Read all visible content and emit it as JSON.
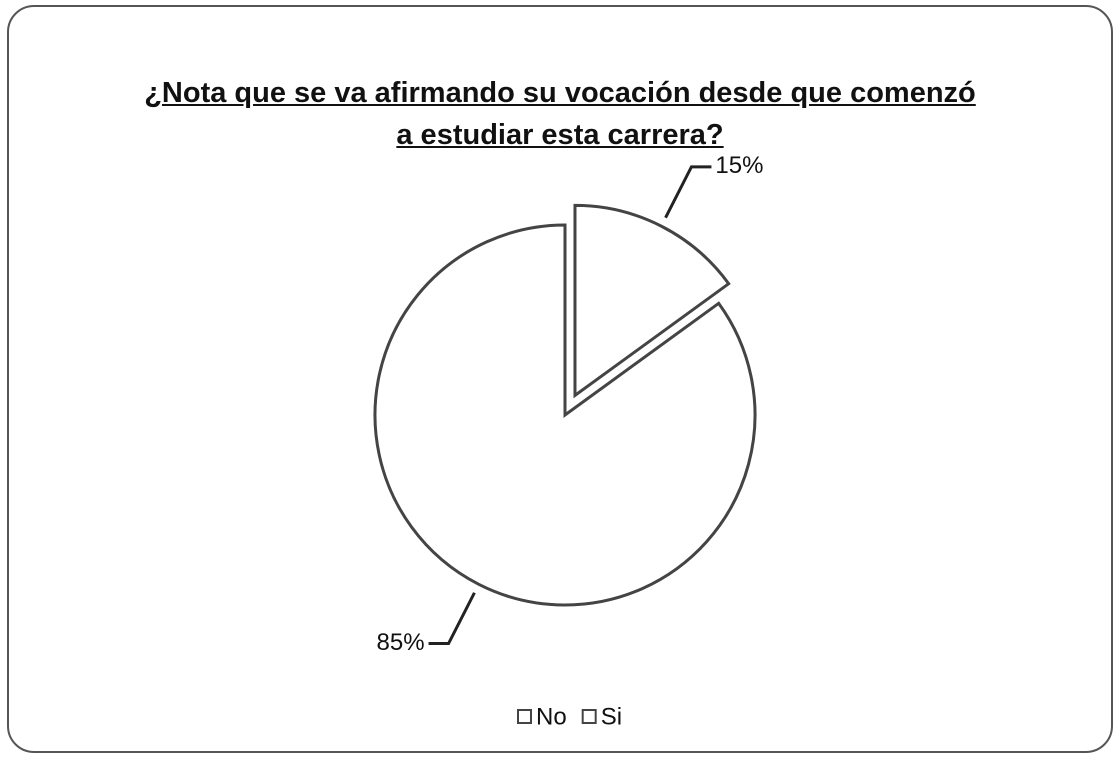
{
  "chart_data": {
    "type": "pie",
    "title": "¿Nota que se va afirmando su vocación desde que comenzó a estudiar esta carrera?",
    "categories": [
      "No",
      "Si"
    ],
    "values": [
      15,
      85
    ],
    "value_labels": [
      "15%",
      "85%"
    ],
    "colors": [
      "#ffffff",
      "#ffffff"
    ],
    "legend": "bottom"
  }
}
